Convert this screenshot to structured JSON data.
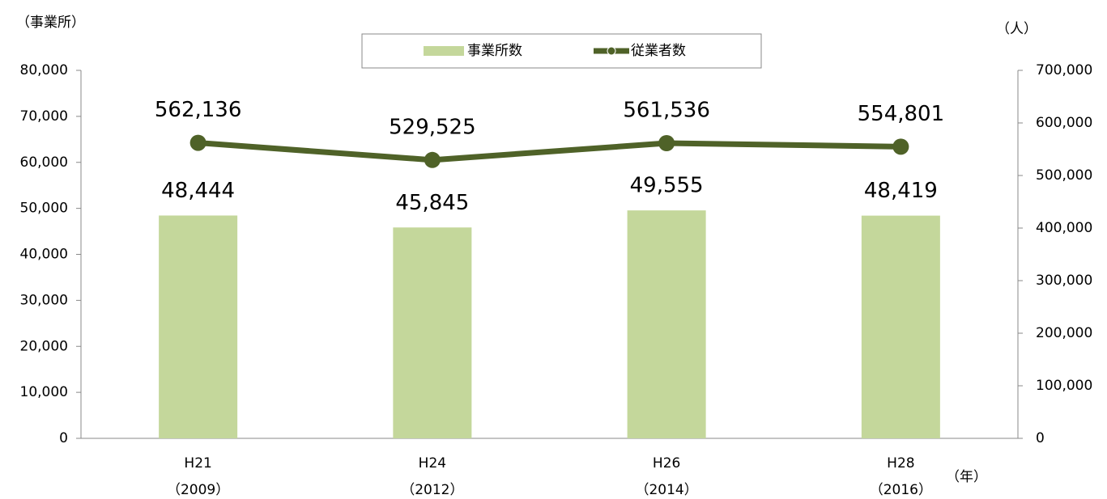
{
  "chart_data": {
    "type": "bar",
    "categories": [
      "H21",
      "H24",
      "H26",
      "H28"
    ],
    "category_years": [
      "（2009）",
      "（2012）",
      "（2014）",
      "（2016）"
    ],
    "y_label": "（事業所）",
    "y2_label": "（人）",
    "x_label": "（年）",
    "legend": "top",
    "series": [
      {
        "name": "事業所数",
        "type": "bar",
        "color": "#c4d79b",
        "values": [
          48444,
          45845,
          49555,
          48419
        ],
        "value_labels": [
          "48,444",
          "45,845",
          "49,555",
          "48,419"
        ]
      },
      {
        "name": "従業者数",
        "type": "line",
        "axis": "y2",
        "color": "#4f6228",
        "values": [
          562136,
          529525,
          561536,
          554801
        ],
        "value_labels": [
          "562,136",
          "529,525",
          "561,536",
          "554,801"
        ]
      }
    ],
    "ylim": [
      0,
      80000
    ],
    "yticks": [
      0,
      {
        "value": 10000,
        "label": "10,000"
      },
      {
        "value": 20000,
        "label": "20,000"
      },
      {
        "value": 30000,
        "label": "30,000"
      },
      {
        "value": 40000,
        "label": "40,000"
      },
      {
        "value": 50000,
        "label": "50,000"
      },
      {
        "value": 60000,
        "label": "60,000"
      },
      {
        "value": 70000,
        "label": "70,000"
      },
      {
        "value": 80000,
        "label": "80,000"
      }
    ],
    "y2lim": [
      0,
      700000
    ],
    "y2ticks": [
      0,
      {
        "value": 100000,
        "label": "100,000"
      },
      {
        "value": 200000,
        "label": "200,000"
      },
      {
        "value": 300000,
        "label": "300,000"
      },
      {
        "value": 400000,
        "label": "400,000"
      },
      {
        "value": 500000,
        "label": "500,000"
      },
      {
        "value": 600000,
        "label": "600,000"
      },
      {
        "value": 700000,
        "label": "700,000"
      }
    ]
  }
}
